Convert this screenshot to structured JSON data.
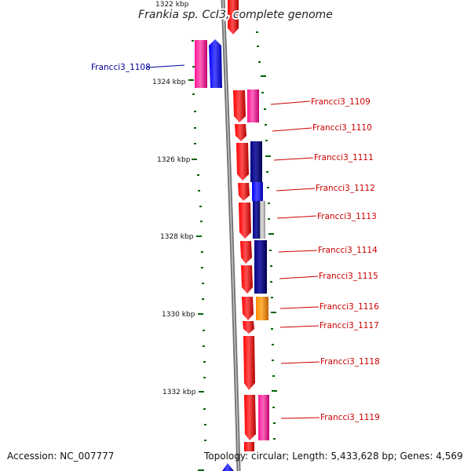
{
  "title": "Frankia sp. CcI3, complete genome",
  "scale_labels": [
    "1322 kbp",
    "1324 kbp",
    "1326 kbp",
    "1328 kbp",
    "1330 kbp",
    "1332 kbp"
  ],
  "features": [
    {
      "name": "Francci3_1108",
      "color": "#000099"
    },
    {
      "name": "Francci3_1109",
      "color": "#cc0000"
    },
    {
      "name": "Francci3_1110",
      "color": "#cc0000"
    },
    {
      "name": "Francci3_1111",
      "color": "#cc0000"
    },
    {
      "name": "Francci3_1112",
      "color": "#cc0000"
    },
    {
      "name": "Francci3_1113",
      "color": "#cc0000"
    },
    {
      "name": "Francci3_1114",
      "color": "#cc0000"
    },
    {
      "name": "Francci3_1115",
      "color": "#cc0000"
    },
    {
      "name": "Francci3_1116",
      "color": "#cc0000"
    },
    {
      "name": "Francci3_1117",
      "color": "#cc0000"
    },
    {
      "name": "Francci3_1118",
      "color": "#cc0000"
    },
    {
      "name": "Francci3_1119",
      "color": "#cc0000"
    }
  ],
  "footer": {
    "accession": "Accession: NC_007777",
    "topology": "Topology: circular; Length: 5,433,628 bp; Genes: 4,569"
  },
  "colors": {
    "gene_red": "#ff0000",
    "gene_pink": "#ff1493",
    "gene_blue": "#0000ff",
    "gene_navy": "#000080",
    "gene_orange": "#ff8c00",
    "gene_gray": "#c0c0c0",
    "tick_green": "#006400",
    "backbone": "#808080"
  }
}
